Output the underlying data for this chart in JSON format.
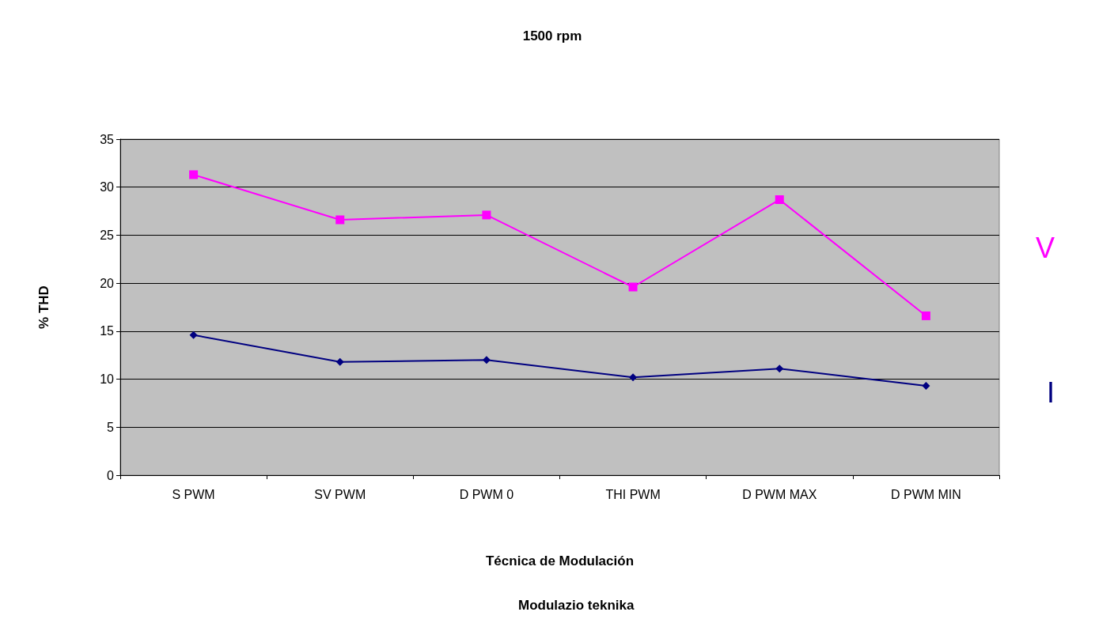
{
  "chart_data": {
    "type": "line",
    "title": "1500 rpm",
    "xlabel": "Técnica de Modulación",
    "ylabel": "% THD",
    "annotations": [
      "Modulazio teknika"
    ],
    "categories": [
      "S PWM",
      "SV PWM",
      "D PWM 0",
      "THI PWM",
      "D PWM MAX",
      "D PWM MIN"
    ],
    "series": [
      {
        "name": "V",
        "color": "#ff00ff",
        "marker": "square",
        "values": [
          31.3,
          26.6,
          27.1,
          19.6,
          28.7,
          16.6
        ]
      },
      {
        "name": "I",
        "color": "#000080",
        "marker": "diamond",
        "values": [
          14.6,
          11.8,
          12.0,
          10.2,
          11.1,
          9.3
        ]
      }
    ],
    "ylim": [
      0,
      35
    ],
    "yticks": [
      0,
      5,
      10,
      15,
      20,
      25,
      30,
      35
    ],
    "grid": "y",
    "legend": false
  }
}
